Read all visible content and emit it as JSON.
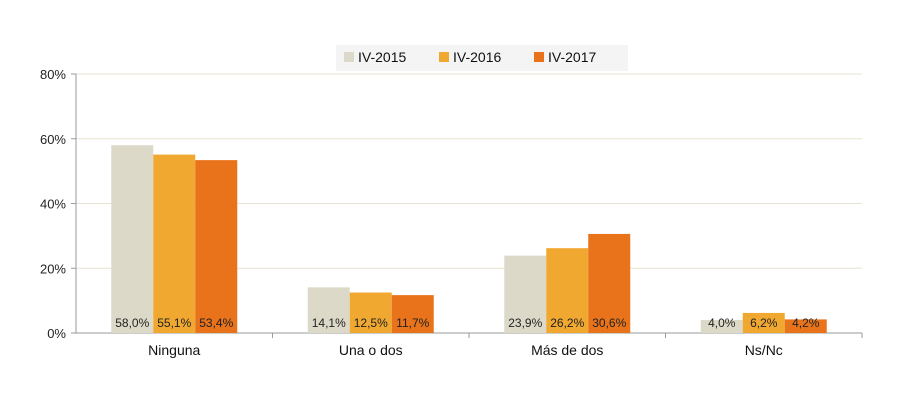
{
  "chart_data": {
    "type": "bar",
    "categories": [
      "Ninguna",
      "Una o dos",
      "Más de dos",
      "Ns/Nc"
    ],
    "series": [
      {
        "name": "IV-2015",
        "color": "#ddd9c8",
        "values": [
          58.0,
          14.1,
          23.9,
          4.0
        ],
        "labels": [
          "58,0%",
          "14,1%",
          "23,9%",
          "4,0%"
        ]
      },
      {
        "name": "IV-2016",
        "color": "#f0a830",
        "values": [
          55.1,
          12.5,
          26.2,
          6.2
        ],
        "labels": [
          "55,1%",
          "12,5%",
          "26,2%",
          "6,2%"
        ]
      },
      {
        "name": "IV-2017",
        "color": "#e8731a",
        "values": [
          53.4,
          11.7,
          30.6,
          4.2
        ],
        "labels": [
          "53,4%",
          "11,7%",
          "30,6%",
          "4,2%"
        ]
      }
    ],
    "yticks": [
      "0%",
      "20%",
      "40%",
      "60%",
      "80%"
    ],
    "ylim": [
      0,
      80
    ],
    "grid": true,
    "legend_position": "top-center",
    "title": "",
    "xlabel": "",
    "ylabel": ""
  }
}
